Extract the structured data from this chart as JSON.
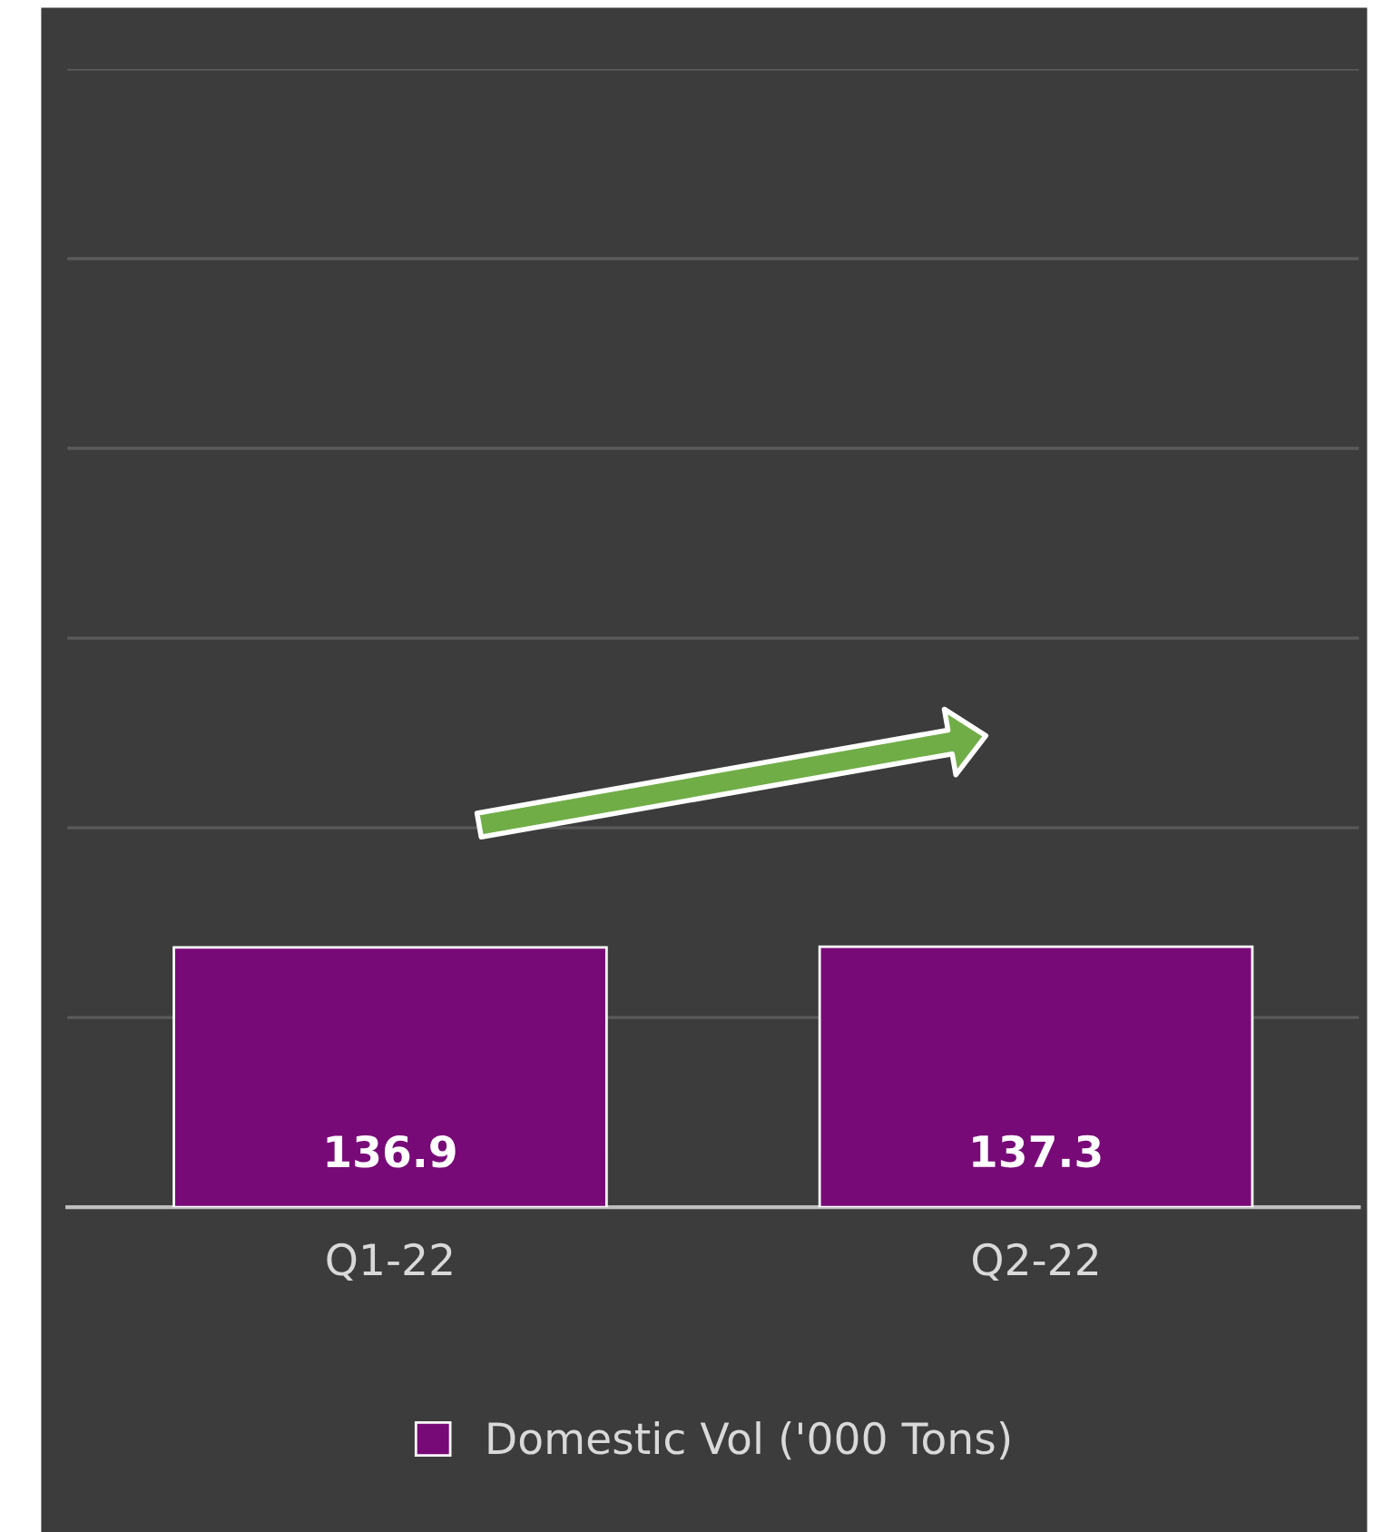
{
  "chart_data": {
    "type": "bar",
    "categories": [
      "Q1-22",
      "Q2-22"
    ],
    "series": [
      {
        "name": "Domestic Vol ('000 Tons)",
        "color": "#780a78",
        "values": [
          136.9,
          137.3
        ]
      }
    ],
    "data_labels": true,
    "ylim": [
      0,
      600
    ],
    "yticks": [
      {
        "value": 0,
        "label": null
      },
      {
        "value": 100,
        "label": null
      },
      {
        "value": 200,
        "label": null
      },
      {
        "value": 300,
        "label": null
      },
      {
        "value": 400,
        "label": null
      },
      {
        "value": 500,
        "label": null
      },
      {
        "value": 600,
        "label": null
      }
    ],
    "tick_labels": "x",
    "grid": "y",
    "legend": "bottom"
  }
}
